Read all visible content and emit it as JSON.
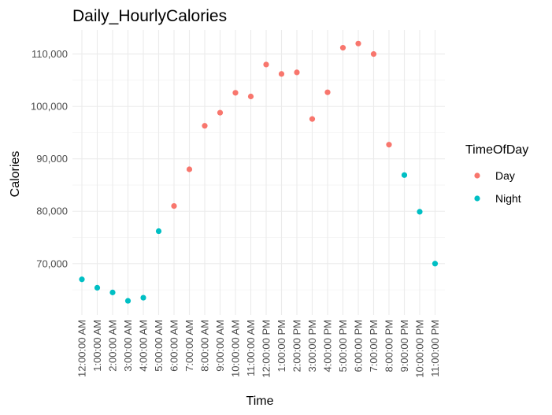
{
  "chart_data": {
    "type": "scatter",
    "title": "Daily_HourlyCalories",
    "xlabel": "Time",
    "ylabel": "Calories",
    "x": [
      "12:00:00 AM",
      "1:00:00 AM",
      "2:00:00 AM",
      "3:00:00 AM",
      "4:00:00 AM",
      "5:00:00 AM",
      "6:00:00 AM",
      "7:00:00 AM",
      "8:00:00 AM",
      "9:00:00 AM",
      "10:00:00 AM",
      "11:00:00 AM",
      "12:00:00 PM",
      "1:00:00 PM",
      "2:00:00 PM",
      "3:00:00 PM",
      "4:00:00 PM",
      "5:00:00 PM",
      "6:00:00 PM",
      "7:00:00 PM",
      "8:00:00 PM",
      "9:00:00 PM",
      "10:00:00 PM",
      "11:00:00 PM"
    ],
    "y": [
      67000,
      65400,
      64500,
      62900,
      63500,
      76200,
      81000,
      88000,
      96300,
      98800,
      102600,
      101900,
      108000,
      106200,
      106500,
      97600,
      102700,
      111200,
      112000,
      110000,
      92700,
      86900,
      79900,
      70000
    ],
    "group": [
      "Night",
      "Night",
      "Night",
      "Night",
      "Night",
      "Night",
      "Day",
      "Day",
      "Day",
      "Day",
      "Day",
      "Day",
      "Day",
      "Day",
      "Day",
      "Day",
      "Day",
      "Day",
      "Day",
      "Day",
      "Day",
      "Night",
      "Night",
      "Night"
    ],
    "yticks": [
      70000,
      80000,
      90000,
      100000,
      110000
    ],
    "ytick_labels": [
      "70,000",
      "80,000",
      "90,000",
      "100,000",
      "110,000"
    ],
    "ylim": [
      60200,
      114600
    ],
    "grid": true,
    "legend": {
      "title": "TimeOfDay",
      "position": "right",
      "entries": [
        {
          "label": "Day",
          "color": "#f8766d"
        },
        {
          "label": "Night",
          "color": "#00bfc4"
        }
      ]
    }
  }
}
